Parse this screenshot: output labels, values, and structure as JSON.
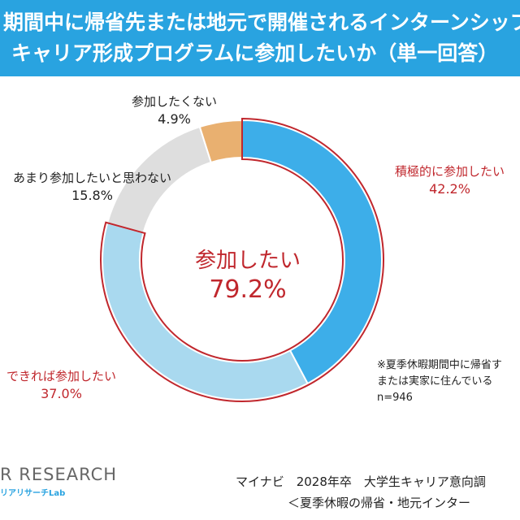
{
  "header": {
    "title_line1": "期間中に帰省先または地元で開催されるインターンシップ",
    "title_line2": "キャリア形成プログラムに参加したいか（単一回答）"
  },
  "chart_data": {
    "type": "pie",
    "title": "期間中に帰省先または地元で開催されるインターンシップ キャリア形成プログラムに参加したいか（単一回答）",
    "slices": [
      {
        "label": "積極的に参加したい",
        "value": 42.2,
        "display": "42.2%",
        "color": "#3daee9"
      },
      {
        "label": "できれば参加したい",
        "value": 37.0,
        "display": "37.0%",
        "color": "#a9d9ef"
      },
      {
        "label": "あまり参加したいと思わない",
        "value": 15.8,
        "display": "15.8%",
        "color": "#dedede"
      },
      {
        "label": "参加したくない",
        "value": 4.9,
        "display": "4.9%",
        "color": "#e9b070"
      }
    ],
    "group_label": {
      "label": "参加したい",
      "value": 79.2,
      "display": "79.2%",
      "color": "#c0272d"
    }
  },
  "note": {
    "line1": "※夏季休暇期間中に帰省す",
    "line2": "または実家に住んでいる",
    "line3": "n=946"
  },
  "logo": {
    "text": "R RESEARCH",
    "subtext": "リアリサーチLab"
  },
  "source": {
    "line1": "マイナビ　2028年卒　大学生キャリア意向調",
    "line2": "＜夏季休暇の帰省・地元インター"
  }
}
